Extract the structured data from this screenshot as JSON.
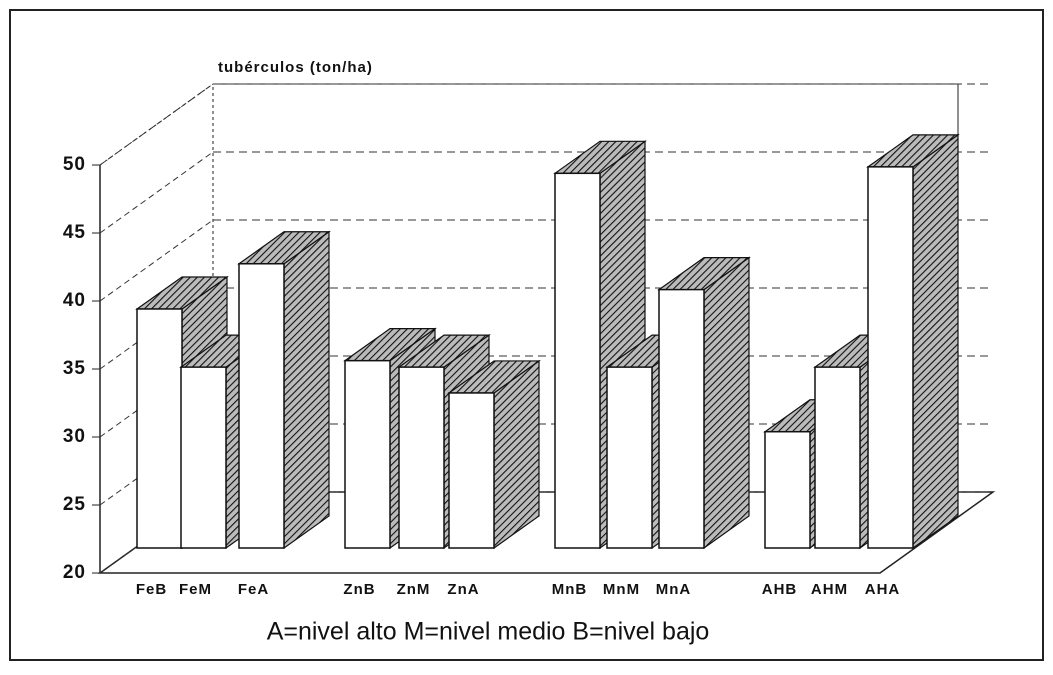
{
  "chart_data": {
    "type": "bar3d",
    "y_axis_label": "tubérculos (ton/ha)",
    "caption": "A=nivel alto M=nivel medio B=nivel bajo",
    "categories": [
      "FeB",
      "FeM",
      "FeA",
      "ZnB",
      "ZnM",
      "ZnA",
      "MnB",
      "MnM",
      "MnA",
      "AHB",
      "AHM",
      "AHA"
    ],
    "values": [
      38.5,
      34,
      42,
      34.5,
      34,
      32,
      49,
      34,
      40,
      29,
      34,
      49.5
    ],
    "ylim": [
      20,
      50
    ],
    "yticks": [
      20,
      25,
      30,
      35,
      40,
      45,
      50
    ],
    "grid": true
  }
}
